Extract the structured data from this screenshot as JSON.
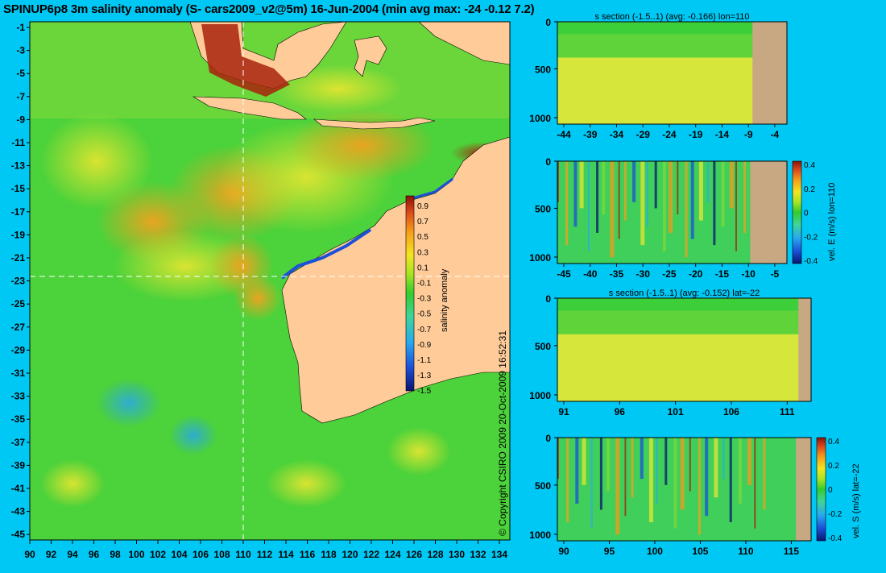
{
  "title": "SPINUP6p8 3m salinity anomaly (S- cars2009_v2@5m) 16-Jun-2004 (min avg max: -24 -0.12 7.2)",
  "copyright": "© Copyright CSIRO 2009   20-Oct-2009 16:52:31",
  "colors": {
    "background": "#00c8f5",
    "land": "#ffcc99",
    "section_land": "#c8a882",
    "ocean_base": "#4cd23a"
  },
  "map": {
    "lat_ticks": [
      "-1",
      "-3",
      "-5",
      "-7",
      "-9",
      "-11",
      "-13",
      "-15",
      "-17",
      "-19",
      "-21",
      "-23",
      "-25",
      "-27",
      "-29",
      "-31",
      "-33",
      "-35",
      "-37",
      "-39",
      "-41",
      "-43",
      "-45"
    ],
    "lon_ticks": [
      "90",
      "92",
      "94",
      "96",
      "98",
      "100",
      "102",
      "104",
      "106",
      "108",
      "110",
      "112",
      "114",
      "116",
      "118",
      "120",
      "122",
      "124",
      "126",
      "128",
      "130",
      "132",
      "134"
    ],
    "crosshair_lon": "110",
    "crosshair_lat": "-22",
    "colorbar": {
      "label": "salinity anomaly",
      "ticks": [
        "0.9",
        "0.7",
        "0.5",
        "0.3",
        "0.1",
        "-0.1",
        "-0.3",
        "-0.5",
        "-0.7",
        "-0.9",
        "-1.1",
        "-1.3",
        "-1.5"
      ]
    }
  },
  "sections": [
    {
      "title": "s section (-1.5..1) (avg: -0.166) lon=110",
      "y_ticks": [
        "0",
        "500",
        "1000"
      ],
      "x_ticks": [
        "-44",
        "-39",
        "-34",
        "-29",
        "-24",
        "-19",
        "-14",
        "-9",
        "-4"
      ],
      "side_label": "",
      "colorbar_ticks": []
    },
    {
      "title": "",
      "y_ticks": [
        "0",
        "500",
        "1000"
      ],
      "x_ticks": [
        "-45",
        "-40",
        "-35",
        "-30",
        "-25",
        "-20",
        "-15",
        "-10",
        "-5"
      ],
      "side_label": "vel. E (m/s) lon=110",
      "colorbar_ticks": [
        "0.4",
        "0.2",
        "0",
        "-0.2",
        "-0.4"
      ]
    },
    {
      "title": "s section (-1.5..1) (avg: -0.152) lat=-22",
      "y_ticks": [
        "0",
        "500",
        "1000"
      ],
      "x_ticks": [
        "91",
        "96",
        "101",
        "106",
        "111"
      ],
      "side_label": "",
      "colorbar_ticks": []
    },
    {
      "title": "",
      "y_ticks": [
        "0",
        "500",
        "1000"
      ],
      "x_ticks": [
        "90",
        "95",
        "100",
        "105",
        "110",
        "115"
      ],
      "side_label": "vel. S (m/s) lat=-22",
      "colorbar_ticks": [
        "0.4",
        "0.2",
        "0",
        "-0.2",
        "-0.4"
      ]
    }
  ]
}
